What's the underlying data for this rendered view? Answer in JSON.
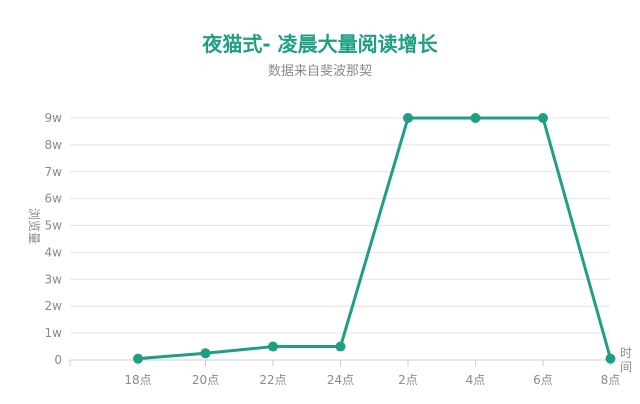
{
  "chart_data": {
    "type": "line",
    "title": "夜猫式- 凌晨大量阅读增长",
    "subtitle": "数据来自斐波那契",
    "ylabel": "浏览量",
    "xlabel": "时间",
    "categories": [
      "18点",
      "20点",
      "22点",
      "24点",
      "2点",
      "4点",
      "6点",
      "8点"
    ],
    "y_ticks": [
      {
        "value": 0,
        "label": "0"
      },
      {
        "value": 10000,
        "label": "1w"
      },
      {
        "value": 20000,
        "label": "2w"
      },
      {
        "value": 30000,
        "label": "3w"
      },
      {
        "value": 40000,
        "label": "4w"
      },
      {
        "value": 50000,
        "label": "5w"
      },
      {
        "value": 60000,
        "label": "6w"
      },
      {
        "value": 70000,
        "label": "7w"
      },
      {
        "value": 80000,
        "label": "8w"
      },
      {
        "value": 90000,
        "label": "9w"
      }
    ],
    "ylim": [
      0,
      90000
    ],
    "series": [
      {
        "values": [
          500,
          2500,
          5000,
          5000,
          90000,
          90000,
          90000,
          500
        ],
        "color": "#1f9e83"
      }
    ],
    "grid": true,
    "legend": "none"
  }
}
